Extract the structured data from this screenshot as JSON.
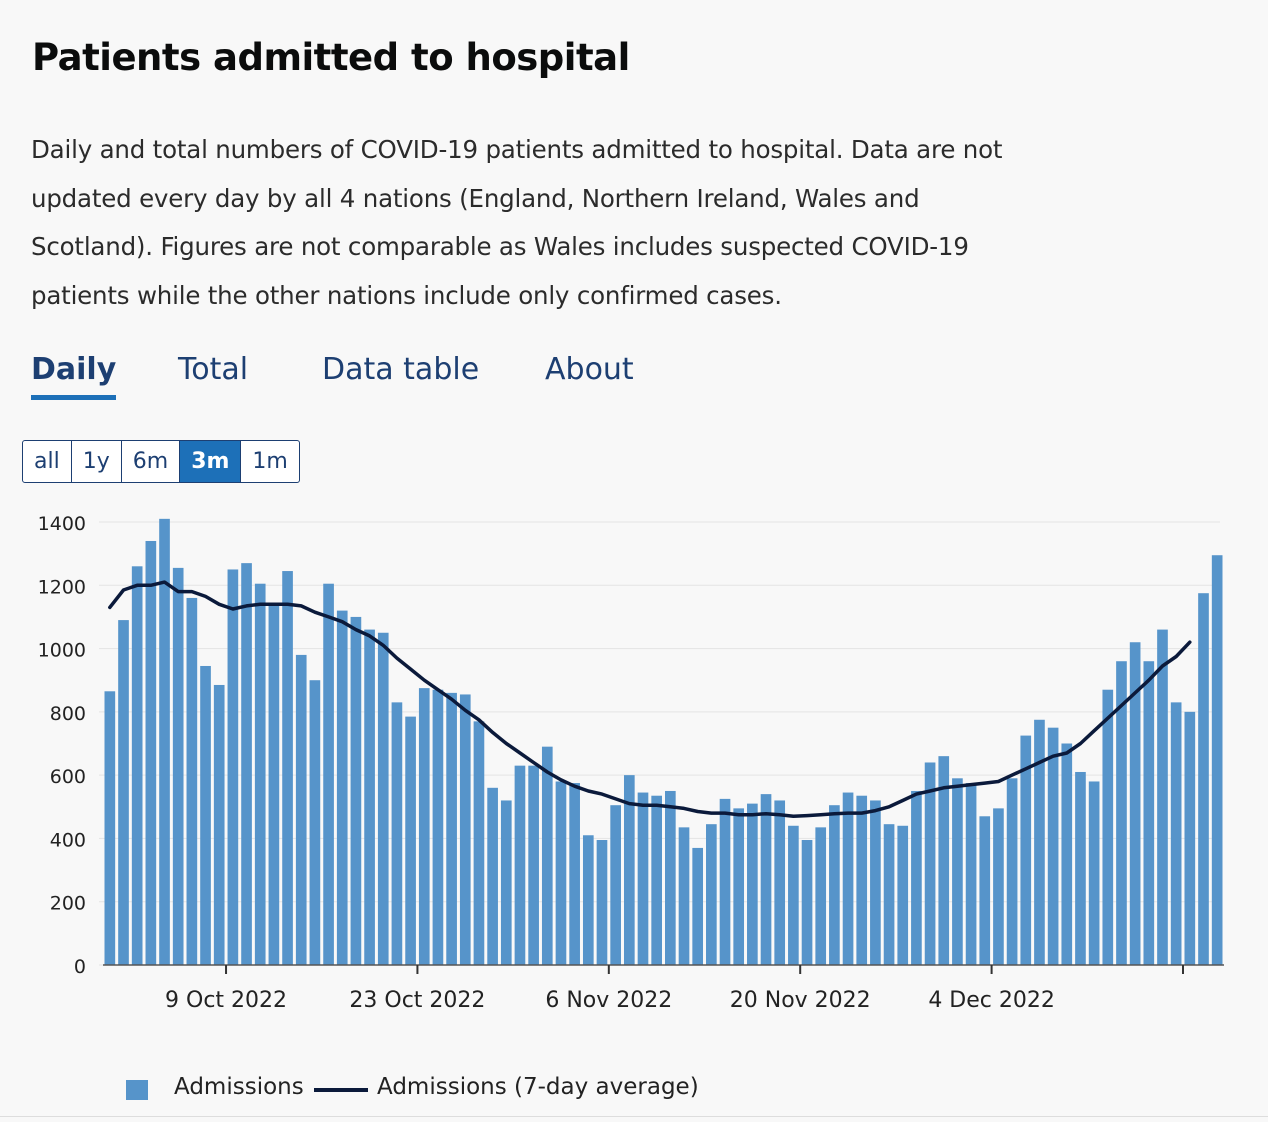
{
  "page": {
    "title": "Patients admitted to hospital",
    "description": "Daily and total numbers of COVID-19 patients admitted to hospital. Data are not updated every day by all 4 nations (England, Northern Ireland, Wales and Scotland). Figures are not comparable as Wales includes suspected COVID-19 patients while the other nations include only confirmed cases."
  },
  "tabs": [
    {
      "label": "Daily",
      "active": true
    },
    {
      "label": "Total",
      "active": false
    },
    {
      "label": "Data table",
      "active": false
    },
    {
      "label": "About",
      "active": false
    }
  ],
  "range_buttons": [
    {
      "label": "all",
      "selected": false
    },
    {
      "label": "1y",
      "selected": false
    },
    {
      "label": "6m",
      "selected": false
    },
    {
      "label": "3m",
      "selected": true
    },
    {
      "label": "1m",
      "selected": false
    }
  ],
  "legend": {
    "bar_label": "Admissions",
    "line_label": "Admissions (7-day average)"
  },
  "colors": {
    "bar": "#5694ca",
    "line": "#0b1a3b",
    "tab_active_underline": "#1d70b8",
    "grid": "#e4e4e4"
  },
  "chart_data": {
    "type": "bar",
    "title": "Patients admitted to hospital",
    "xlabel": "",
    "ylabel": "",
    "ylim": [
      0,
      1400
    ],
    "yticks": [
      0,
      200,
      400,
      600,
      800,
      1000,
      1200,
      1400
    ],
    "grid": true,
    "x_tick_labels": [
      {
        "label": "9 Oct 2022",
        "index": 9
      },
      {
        "label": "23 Oct 2022",
        "index": 23
      },
      {
        "label": "6 Nov 2022",
        "index": 37
      },
      {
        "label": "20 Nov 2022",
        "index": 51
      },
      {
        "label": "4 Dec 2022",
        "index": 65
      },
      {
        "label": "",
        "index": 79
      }
    ],
    "series": [
      {
        "name": "Admissions",
        "kind": "bar",
        "values": [
          865,
          1090,
          1260,
          1340,
          1410,
          1255,
          1160,
          945,
          885,
          1250,
          1270,
          1205,
          1135,
          1245,
          980,
          900,
          1205,
          1120,
          1100,
          1060,
          1050,
          830,
          785,
          875,
          870,
          860,
          855,
          770,
          560,
          520,
          630,
          630,
          690,
          580,
          575,
          410,
          395,
          505,
          600,
          545,
          535,
          550,
          435,
          370,
          445,
          525,
          495,
          510,
          540,
          520,
          440,
          395,
          435,
          505,
          545,
          535,
          520,
          445,
          440,
          550,
          640,
          660,
          590,
          575,
          470,
          495,
          590,
          725,
          775,
          750,
          700,
          610,
          580,
          870,
          960,
          1020,
          960,
          1060,
          830,
          800,
          1175,
          1295
        ]
      },
      {
        "name": "Admissions (7-day average)",
        "kind": "line",
        "values": [
          1130,
          1185,
          1200,
          1200,
          1210,
          1180,
          1180,
          1165,
          1140,
          1125,
          1135,
          1140,
          1140,
          1140,
          1135,
          1115,
          1100,
          1085,
          1060,
          1040,
          1010,
          970,
          935,
          900,
          870,
          840,
          805,
          775,
          735,
          700,
          670,
          640,
          610,
          585,
          565,
          550,
          540,
          525,
          510,
          505,
          505,
          500,
          495,
          485,
          480,
          480,
          475,
          475,
          478,
          475,
          470,
          472,
          475,
          478,
          480,
          480,
          488,
          500,
          520,
          540,
          550,
          560,
          565,
          570,
          575,
          580,
          600,
          620,
          640,
          660,
          670,
          700,
          740,
          780,
          820,
          860,
          900,
          945,
          975,
          1020
        ]
      }
    ]
  }
}
